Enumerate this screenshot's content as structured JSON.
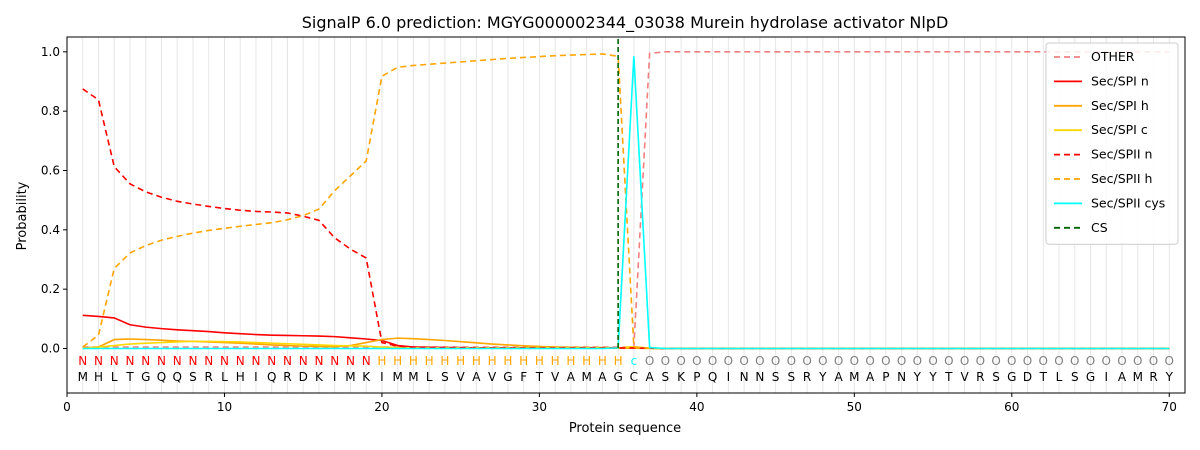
{
  "chart_data": {
    "type": "line",
    "title": "SignalP 6.0 prediction: MGYG000002344_03038 Murein hydrolase activator NlpD",
    "xlabel": "Protein sequence",
    "ylabel": "Probability",
    "xlim": [
      0,
      71
    ],
    "ylim": [
      -0.15,
      1.05
    ],
    "xticks": [
      0,
      10,
      20,
      30,
      40,
      50,
      60,
      70
    ],
    "yticks": [
      0.0,
      0.2,
      0.4,
      0.6,
      0.8,
      1.0
    ],
    "xtick_labels": [
      "0",
      "10",
      "20",
      "30",
      "40",
      "50",
      "60",
      "70"
    ],
    "ytick_labels": [
      "0.0",
      "0.2",
      "0.4",
      "0.6",
      "0.8",
      "1.0"
    ],
    "grid": "vertical lines at every residue",
    "legend_position": "top-right",
    "sequence": [
      "M",
      "H",
      "L",
      "T",
      "G",
      "Q",
      "Q",
      "S",
      "R",
      "L",
      "H",
      "I",
      "Q",
      "R",
      "D",
      "K",
      "I",
      "M",
      "K",
      "I",
      "M",
      "M",
      "L",
      "S",
      "V",
      "A",
      "V",
      "G",
      "F",
      "T",
      "V",
      "A",
      "M",
      "A",
      "G",
      "C",
      "A",
      "S",
      "K",
      "P",
      "Q",
      "I",
      "N",
      "N",
      "S",
      "S",
      "R",
      "Y",
      "A",
      "M",
      "A",
      "P",
      "N",
      "Y",
      "Y",
      "T",
      "V",
      "R",
      "S",
      "G",
      "D",
      "T",
      "L",
      "S",
      "G",
      "I",
      "A",
      "M",
      "R",
      "Y"
    ],
    "region_labels": [
      "N",
      "N",
      "N",
      "N",
      "N",
      "N",
      "N",
      "N",
      "N",
      "N",
      "N",
      "N",
      "N",
      "N",
      "N",
      "N",
      "N",
      "N",
      "N",
      "H",
      "H",
      "H",
      "H",
      "H",
      "H",
      "H",
      "H",
      "H",
      "H",
      "H",
      "H",
      "H",
      "H",
      "H",
      "H",
      "c",
      "O",
      "O",
      "O",
      "O",
      "O",
      "O",
      "O",
      "O",
      "O",
      "O",
      "O",
      "O",
      "O",
      "O",
      "O",
      "O",
      "O",
      "O",
      "O",
      "O",
      "O",
      "O",
      "O",
      "O",
      "O",
      "O",
      "O",
      "O",
      "O",
      "O",
      "O",
      "O",
      "O",
      "O"
    ],
    "region_colors": {
      "N": "#ff0000",
      "H": "#ffa500",
      "c": "#00ffff",
      "O": "#808080"
    },
    "cleavage_site": 35,
    "series": [
      {
        "name": "OTHER",
        "color": "#f08080",
        "dash": "6,4",
        "values": [
          0.005,
          0.005,
          0.005,
          0.005,
          0.005,
          0.005,
          0.005,
          0.005,
          0.005,
          0.005,
          0.005,
          0.005,
          0.005,
          0.005,
          0.005,
          0.005,
          0.005,
          0.005,
          0.005,
          0.005,
          0.005,
          0.005,
          0.005,
          0.005,
          0.005,
          0.005,
          0.005,
          0.005,
          0.005,
          0.005,
          0.005,
          0.005,
          0.005,
          0.005,
          0.005,
          0.005,
          0.995,
          1.0,
          1.0,
          1.0,
          1.0,
          1.0,
          1.0,
          1.0,
          1.0,
          1.0,
          1.0,
          1.0,
          1.0,
          1.0,
          1.0,
          1.0,
          1.0,
          1.0,
          1.0,
          1.0,
          1.0,
          1.0,
          1.0,
          1.0,
          1.0,
          1.0,
          1.0,
          1.0,
          1.0,
          1.0,
          1.0,
          1.0,
          1.0,
          1.0
        ]
      },
      {
        "name": "Sec/SPI n",
        "color": "#ff0000",
        "dash": "",
        "values": [
          0.112,
          0.108,
          0.103,
          0.08,
          0.072,
          0.067,
          0.063,
          0.06,
          0.057,
          0.053,
          0.05,
          0.047,
          0.045,
          0.044,
          0.043,
          0.042,
          0.04,
          0.036,
          0.032,
          0.027,
          0.01,
          0.005,
          0.004,
          0.003,
          0.002,
          0.002,
          0.002,
          0.002,
          0.002,
          0.002,
          0.002,
          0.002,
          0.002,
          0.002,
          0.002,
          0.002,
          0.001,
          0.0,
          0.0,
          0.0,
          0.0,
          0.0,
          0.0,
          0.0,
          0.0,
          0.0,
          0.0,
          0.0,
          0.0,
          0.0,
          0.0,
          0.0,
          0.0,
          0.0,
          0.0,
          0.0,
          0.0,
          0.0,
          0.0,
          0.0,
          0.0,
          0.0,
          0.0,
          0.0,
          0.0,
          0.0,
          0.0,
          0.0,
          0.0,
          0.0
        ]
      },
      {
        "name": "Sec/SPI h",
        "color": "#ffa500",
        "dash": "",
        "values": [
          0.002,
          0.005,
          0.03,
          0.032,
          0.03,
          0.028,
          0.025,
          0.024,
          0.022,
          0.02,
          0.018,
          0.015,
          0.012,
          0.01,
          0.008,
          0.007,
          0.006,
          0.01,
          0.02,
          0.03,
          0.035,
          0.033,
          0.03,
          0.027,
          0.023,
          0.019,
          0.015,
          0.012,
          0.009,
          0.007,
          0.005,
          0.004,
          0.003,
          0.003,
          0.002,
          0.001,
          0.0,
          0.0,
          0.0,
          0.0,
          0.0,
          0.0,
          0.0,
          0.0,
          0.0,
          0.0,
          0.0,
          0.0,
          0.0,
          0.0,
          0.0,
          0.0,
          0.0,
          0.0,
          0.0,
          0.0,
          0.0,
          0.0,
          0.0,
          0.0,
          0.0,
          0.0,
          0.0,
          0.0,
          0.0,
          0.0,
          0.0,
          0.0,
          0.0,
          0.0
        ]
      },
      {
        "name": "Sec/SPI c",
        "color": "#ffd700",
        "dash": "",
        "values": [
          0.0,
          0.005,
          0.01,
          0.015,
          0.018,
          0.02,
          0.022,
          0.024,
          0.024,
          0.023,
          0.022,
          0.02,
          0.018,
          0.016,
          0.014,
          0.012,
          0.01,
          0.009,
          0.008,
          0.005,
          0.003,
          0.002,
          0.002,
          0.002,
          0.002,
          0.002,
          0.002,
          0.002,
          0.002,
          0.002,
          0.002,
          0.002,
          0.002,
          0.002,
          0.002,
          0.006,
          0.001,
          0.0,
          0.0,
          0.0,
          0.0,
          0.0,
          0.0,
          0.0,
          0.0,
          0.0,
          0.0,
          0.0,
          0.0,
          0.0,
          0.0,
          0.0,
          0.0,
          0.0,
          0.0,
          0.0,
          0.0,
          0.0,
          0.0,
          0.0,
          0.0,
          0.0,
          0.0,
          0.0,
          0.0,
          0.0,
          0.0,
          0.0,
          0.0,
          0.0
        ]
      },
      {
        "name": "Sec/SPII n",
        "color": "#ff0000",
        "dash": "6,4",
        "values": [
          0.875,
          0.838,
          0.613,
          0.555,
          0.528,
          0.51,
          0.496,
          0.487,
          0.479,
          0.472,
          0.466,
          0.462,
          0.46,
          0.457,
          0.446,
          0.432,
          0.373,
          0.335,
          0.305,
          0.02,
          0.008,
          0.005,
          0.004,
          0.003,
          0.003,
          0.002,
          0.002,
          0.002,
          0.002,
          0.002,
          0.002,
          0.002,
          0.002,
          0.002,
          0.002,
          0.002,
          0.001,
          0.0,
          0.0,
          0.0,
          0.0,
          0.0,
          0.0,
          0.0,
          0.0,
          0.0,
          0.0,
          0.0,
          0.0,
          0.0,
          0.0,
          0.0,
          0.0,
          0.0,
          0.0,
          0.0,
          0.0,
          0.0,
          0.0,
          0.0,
          0.0,
          0.0,
          0.0,
          0.0,
          0.0,
          0.0,
          0.0,
          0.0,
          0.0,
          0.0
        ]
      },
      {
        "name": "Sec/SPII h",
        "color": "#ffa500",
        "dash": "6,4",
        "values": [
          0.005,
          0.045,
          0.27,
          0.322,
          0.347,
          0.365,
          0.378,
          0.389,
          0.398,
          0.405,
          0.412,
          0.418,
          0.424,
          0.434,
          0.448,
          0.47,
          0.532,
          0.582,
          0.632,
          0.918,
          0.948,
          0.954,
          0.958,
          0.962,
          0.966,
          0.97,
          0.974,
          0.978,
          0.981,
          0.984,
          0.987,
          0.989,
          0.991,
          0.993,
          0.985,
          0.005,
          0.001,
          0.0,
          0.0,
          0.0,
          0.0,
          0.0,
          0.0,
          0.0,
          0.0,
          0.0,
          0.0,
          0.0,
          0.0,
          0.0,
          0.0,
          0.0,
          0.0,
          0.0,
          0.0,
          0.0,
          0.0,
          0.0,
          0.0,
          0.0,
          0.0,
          0.0,
          0.0,
          0.0,
          0.0,
          0.0,
          0.0,
          0.0,
          0.0,
          0.0
        ]
      },
      {
        "name": "Sec/SPII cys",
        "color": "#00ffff",
        "dash": "",
        "values": [
          0.0,
          0.0,
          0.0,
          0.0,
          0.0,
          0.0,
          0.0,
          0.0,
          0.0,
          0.0,
          0.0,
          0.0,
          0.0,
          0.0,
          0.0,
          0.0,
          0.0,
          0.0,
          0.0,
          0.0,
          0.0,
          0.0,
          0.0,
          0.0,
          0.0,
          0.0,
          0.0,
          0.0,
          0.0,
          0.0,
          0.0,
          0.0,
          0.0,
          0.0,
          0.002,
          0.985,
          0.003,
          0.0,
          0.0,
          0.0,
          0.0,
          0.0,
          0.0,
          0.0,
          0.0,
          0.0,
          0.0,
          0.0,
          0.0,
          0.0,
          0.0,
          0.0,
          0.0,
          0.0,
          0.0,
          0.0,
          0.0,
          0.0,
          0.0,
          0.0,
          0.0,
          0.0,
          0.0,
          0.0,
          0.0,
          0.0,
          0.0,
          0.0,
          0.0,
          0.0
        ]
      }
    ],
    "legend": [
      {
        "label": "OTHER",
        "color": "#f08080",
        "dash": "6,4"
      },
      {
        "label": "Sec/SPI n",
        "color": "#ff0000",
        "dash": ""
      },
      {
        "label": "Sec/SPI h",
        "color": "#ffa500",
        "dash": ""
      },
      {
        "label": "Sec/SPI c",
        "color": "#ffd700",
        "dash": ""
      },
      {
        "label": "Sec/SPII n",
        "color": "#ff0000",
        "dash": "6,4"
      },
      {
        "label": "Sec/SPII h",
        "color": "#ffa500",
        "dash": "6,4"
      },
      {
        "label": "Sec/SPII cys",
        "color": "#00ffff",
        "dash": ""
      },
      {
        "label": "CS",
        "color": "#006400",
        "dash": "6,4"
      }
    ]
  }
}
